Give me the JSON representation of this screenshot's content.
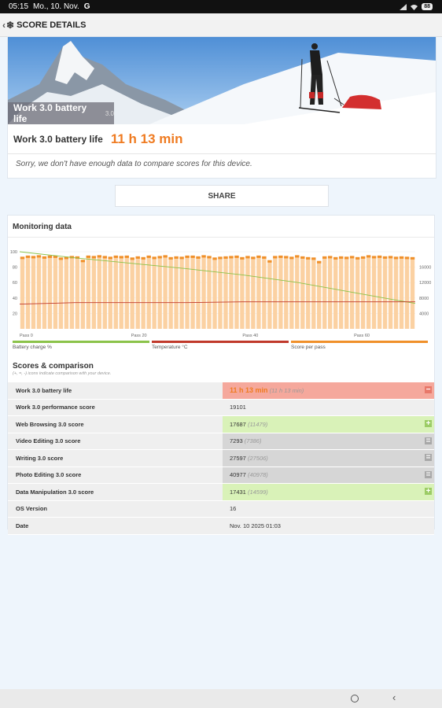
{
  "status_bar": {
    "time": "05:15",
    "date": "Mo., 10. Nov.",
    "g_icon": "G",
    "battery": "88"
  },
  "app_bar": {
    "title": "SCORE DETAILS"
  },
  "hero": {
    "caption": "Work 3.0 battery life",
    "caption_version": "3.0",
    "result_label": "Work 3.0 battery life",
    "result_value": "11 h 13 min",
    "compare_note": "Sorry, we don't have enough data to compare scores for this device."
  },
  "share": {
    "label": "SHARE"
  },
  "monitoring": {
    "title": "Monitoring data",
    "legend": [
      "Battery charge %",
      "Temperature °C",
      "Score per pass"
    ],
    "colors": {
      "battery": "#8bc34a",
      "temperature": "#c0392b",
      "score": "#f0902a",
      "bar_fill": "#fbd1a2"
    }
  },
  "chart_data": {
    "type": "bar",
    "x_ticks": [
      "Pass 0",
      "Pass 20",
      "Pass 40",
      "Pass 60"
    ],
    "x_tick_values": [
      0,
      20,
      40,
      60
    ],
    "y_left_ticks": [
      "20",
      "40",
      "60",
      "80",
      "100"
    ],
    "y_left_range": [
      0,
      100
    ],
    "y_right_ticks": [
      "4000",
      "8000",
      "12000",
      "16000"
    ],
    "y_right_range": [
      0,
      20000
    ],
    "series": [
      {
        "name": "Score per pass",
        "type": "bar",
        "axis": "right",
        "values": [
          18700,
          19000,
          18900,
          19100,
          18800,
          19000,
          19000,
          18500,
          18700,
          18900,
          18800,
          17900,
          19000,
          18900,
          19100,
          18900,
          18700,
          19000,
          18900,
          19000,
          18500,
          18800,
          18600,
          19000,
          18700,
          18900,
          19100,
          18600,
          18800,
          18700,
          19000,
          19000,
          18800,
          19100,
          18900,
          18500,
          18700,
          18800,
          18900,
          19000,
          18600,
          18900,
          18700,
          19000,
          18800,
          17800,
          18900,
          19000,
          18900,
          18700,
          19100,
          18800,
          18600,
          18500,
          17600,
          18800,
          18900,
          18600,
          18800,
          18700,
          18900,
          18600,
          18800,
          19100,
          18900,
          19000,
          18800,
          18900,
          18700,
          18800,
          18700,
          18600
        ]
      },
      {
        "name": "Battery charge %",
        "type": "line",
        "axis": "left",
        "points": [
          [
            0,
            100
          ],
          [
            10,
            92
          ],
          [
            20,
            85
          ],
          [
            30,
            78
          ],
          [
            40,
            70
          ],
          [
            50,
            60
          ],
          [
            60,
            47
          ],
          [
            67,
            38
          ],
          [
            71,
            33
          ]
        ]
      },
      {
        "name": "Temperature °C",
        "type": "line",
        "axis": "left",
        "points": [
          [
            0,
            32
          ],
          [
            5,
            33
          ],
          [
            10,
            34
          ],
          [
            20,
            34
          ],
          [
            30,
            34
          ],
          [
            40,
            35
          ],
          [
            50,
            35
          ],
          [
            60,
            35
          ],
          [
            71,
            35
          ]
        ]
      }
    ]
  },
  "scores": {
    "title": "Scores & comparison",
    "subtitle": "(+, =, -) icons indicate comparison with your device.",
    "rows": [
      {
        "label": "Work 3.0 battery life",
        "value": "11 h 13 min",
        "ref": "(11 h 13 min)",
        "status": "minus",
        "highlight": true
      },
      {
        "label": "Work 3.0 performance score",
        "value": "19101",
        "ref": "",
        "status": "none",
        "highlight": false
      },
      {
        "label": "Web Browsing 3.0 score",
        "value": "17687",
        "ref": "(11479)",
        "status": "plus",
        "highlight": false
      },
      {
        "label": "Video Editing 3.0 score",
        "value": "7293",
        "ref": "(7386)",
        "status": "equal",
        "highlight": false
      },
      {
        "label": "Writing 3.0 score",
        "value": "27597",
        "ref": "(27506)",
        "status": "equal",
        "highlight": false
      },
      {
        "label": "Photo Editing 3.0 score",
        "value": "40977",
        "ref": "(40978)",
        "status": "equal",
        "highlight": false
      },
      {
        "label": "Data Manipulation 3.0 score",
        "value": "17431",
        "ref": "(14599)",
        "status": "plus",
        "highlight": false
      },
      {
        "label": "OS Version",
        "value": "16",
        "ref": "",
        "status": "none",
        "highlight": false
      },
      {
        "label": "Date",
        "value": "Nov. 10 2025 01:03",
        "ref": "",
        "status": "none",
        "highlight": false
      }
    ],
    "status_colors": {
      "minus": "#f5a89c",
      "plus": "#d9f2b8",
      "equal": "#d6d6d6"
    },
    "indicator_colors": {
      "minus": "#e8786a",
      "plus": "#9ccc65",
      "equal": "#a8a8a8"
    }
  },
  "nav": {
    "home_icon": "home-circle",
    "back_icon": "back-chevron"
  }
}
